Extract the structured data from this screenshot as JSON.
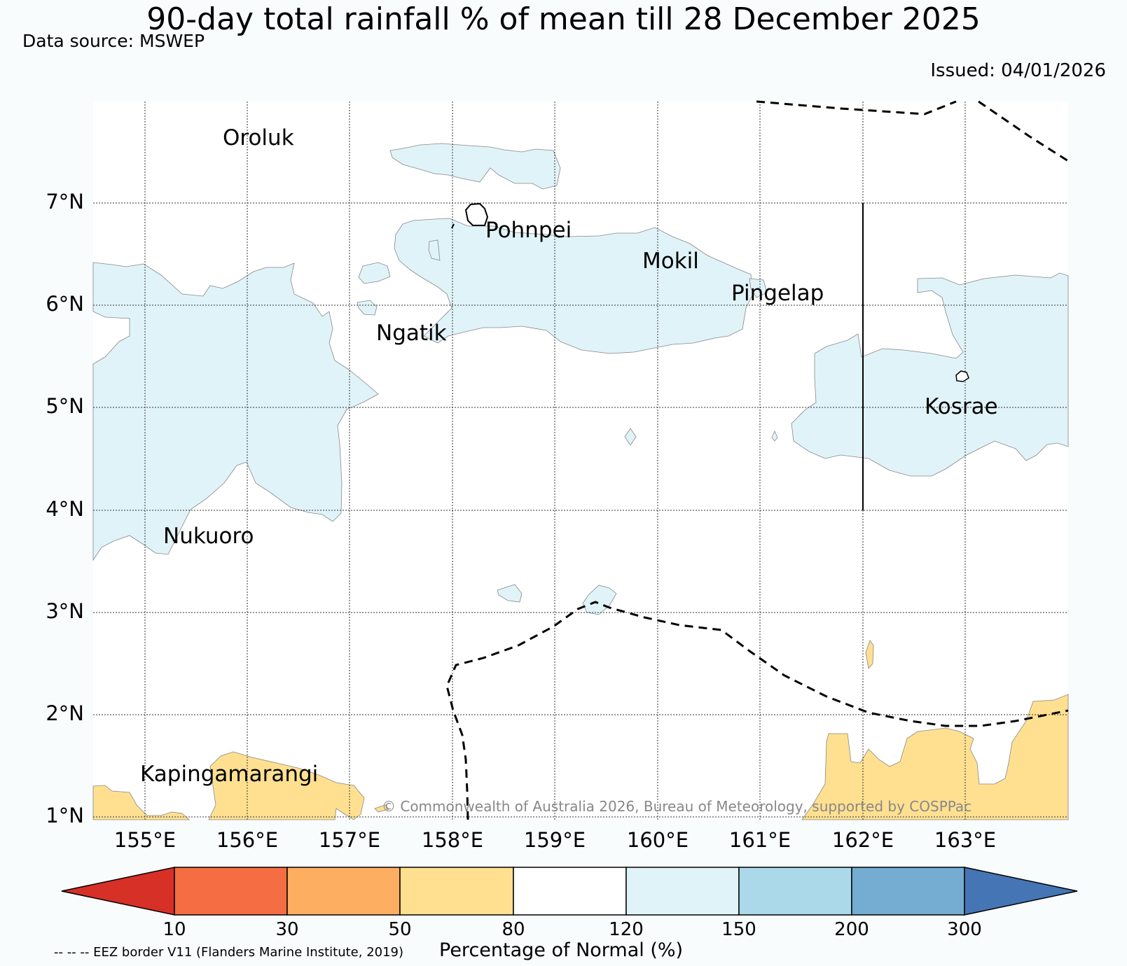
{
  "title": "90-day total rainfall % of mean till 28 December 2025",
  "data_source": "Data source: MSWEP",
  "issued": "Issued: 04/01/2026",
  "copyright": "© Commonwealth of Australia 2026, Bureau of Meteorology, supported by COSPPac",
  "eez_note": "-- -- -- EEZ border V11 (Flanders Marine Institute, 2019)",
  "latitude_labels": [
    "7°N",
    "6°N",
    "5°N",
    "4°N",
    "3°N",
    "2°N",
    "1°N"
  ],
  "longitude_labels": [
    "155°E",
    "156°E",
    "157°E",
    "158°E",
    "159°E",
    "160°E",
    "161°E",
    "162°E",
    "163°E"
  ],
  "places": {
    "oroluk": "Oroluk",
    "pohnpei": "Pohnpei",
    "mokil": "Mokil",
    "pingelap": "Pingelap",
    "ngatik": "Ngatik",
    "kosrae": "Kosrae",
    "nukuoro": "Nukuoro",
    "kapingamarangi": "Kapingamarangi"
  },
  "colorbar": {
    "label": "Percentage of Normal (%)",
    "ticks": [
      "10",
      "30",
      "50",
      "80",
      "120",
      "150",
      "200",
      "300"
    ],
    "colors": {
      "below_10": "#d73027",
      "10_30": "#f46d43",
      "30_50": "#fdae61",
      "50_80": "#fee090",
      "80_120": "#ffffff",
      "120_150": "#e0f3f8",
      "150_200": "#abd9e9",
      "200_300": "#74add1",
      "above_300": "#4575b4"
    }
  }
}
